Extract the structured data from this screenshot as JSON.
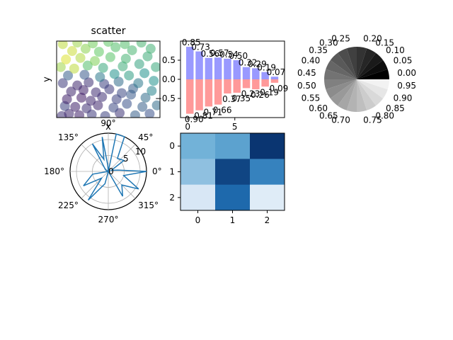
{
  "chart_data": [
    {
      "type": "scatter",
      "title": "scatter",
      "xlabel": "x",
      "ylabel": "y",
      "xlim": [
        0,
        1
      ],
      "ylim": [
        0,
        1
      ],
      "grid": false,
      "colormap": "viridis",
      "points": [
        [
          0.05,
          0.02,
          0.15
        ],
        [
          0.12,
          0.05,
          0.12
        ],
        [
          0.22,
          0.03,
          0.1
        ],
        [
          0.34,
          0.04,
          0.18
        ],
        [
          0.47,
          0.02,
          0.2
        ],
        [
          0.61,
          0.06,
          0.16
        ],
        [
          0.76,
          0.03,
          0.3
        ],
        [
          0.9,
          0.05,
          0.25
        ],
        [
          0.08,
          0.15,
          0.2
        ],
        [
          0.18,
          0.14,
          0.1
        ],
        [
          0.29,
          0.12,
          0.15
        ],
        [
          0.4,
          0.16,
          0.12
        ],
        [
          0.55,
          0.13,
          0.22
        ],
        [
          0.68,
          0.18,
          0.25
        ],
        [
          0.83,
          0.14,
          0.3
        ],
        [
          0.97,
          0.16,
          0.35
        ],
        [
          0.1,
          0.24,
          0.1
        ],
        [
          0.24,
          0.26,
          0.08
        ],
        [
          0.33,
          0.22,
          0.12
        ],
        [
          0.44,
          0.27,
          0.15
        ],
        [
          0.58,
          0.24,
          0.2
        ],
        [
          0.72,
          0.3,
          0.28
        ],
        [
          0.86,
          0.26,
          0.35
        ],
        [
          0.14,
          0.34,
          0.12
        ],
        [
          0.26,
          0.36,
          0.1
        ],
        [
          0.38,
          0.33,
          0.14
        ],
        [
          0.51,
          0.37,
          0.18
        ],
        [
          0.63,
          0.32,
          0.22
        ],
        [
          0.74,
          0.38,
          0.3
        ],
        [
          0.92,
          0.35,
          0.45
        ],
        [
          0.06,
          0.45,
          0.18
        ],
        [
          0.2,
          0.42,
          0.12
        ],
        [
          0.31,
          0.46,
          0.15
        ],
        [
          0.46,
          0.44,
          0.2
        ],
        [
          0.6,
          0.47,
          0.35
        ],
        [
          0.79,
          0.45,
          0.4
        ],
        [
          0.94,
          0.48,
          0.5
        ],
        [
          0.11,
          0.55,
          0.3
        ],
        [
          0.27,
          0.56,
          0.28
        ],
        [
          0.42,
          0.53,
          0.4
        ],
        [
          0.56,
          0.57,
          0.5
        ],
        [
          0.7,
          0.55,
          0.55
        ],
        [
          0.85,
          0.58,
          0.5
        ],
        [
          0.04,
          0.66,
          0.85
        ],
        [
          0.17,
          0.64,
          0.9
        ],
        [
          0.3,
          0.68,
          0.7
        ],
        [
          0.45,
          0.65,
          0.6
        ],
        [
          0.64,
          0.67,
          0.62
        ],
        [
          0.8,
          0.7,
          0.58
        ],
        [
          0.96,
          0.66,
          0.6
        ],
        [
          0.09,
          0.76,
          0.95
        ],
        [
          0.23,
          0.78,
          0.88
        ],
        [
          0.37,
          0.74,
          0.8
        ],
        [
          0.52,
          0.79,
          0.72
        ],
        [
          0.67,
          0.77,
          0.65
        ],
        [
          0.88,
          0.8,
          0.62
        ],
        [
          0.15,
          0.87,
          0.92
        ],
        [
          0.28,
          0.9,
          0.82
        ],
        [
          0.41,
          0.86,
          0.75
        ],
        [
          0.57,
          0.92,
          0.7
        ],
        [
          0.73,
          0.88,
          0.66
        ],
        [
          0.91,
          0.9,
          0.64
        ],
        [
          0.06,
          0.96,
          0.9
        ],
        [
          0.2,
          0.98,
          0.85
        ],
        [
          0.35,
          0.97,
          0.78
        ],
        [
          0.5,
          0.99,
          0.74
        ],
        [
          0.66,
          0.96,
          0.7
        ],
        [
          0.82,
          0.98,
          0.66
        ]
      ]
    },
    {
      "type": "bar",
      "categories": [
        "0",
        "1",
        "2",
        "3",
        "4",
        "5",
        "6",
        "7",
        "8",
        "9"
      ],
      "series": [
        {
          "values": [
            0.85,
            0.73,
            0.56,
            0.57,
            0.54,
            0.5,
            0.32,
            0.29,
            0.19,
            0.07
          ],
          "color": "#9999ff"
        },
        {
          "values": [
            -0.9,
            -0.81,
            -0.71,
            -0.66,
            -0.37,
            -0.35,
            -0.23,
            -0.26,
            -0.19,
            -0.09
          ],
          "color": "#ff9999"
        }
      ],
      "value_labels_top": [
        "0.85",
        "0.73",
        "0.56",
        "0.57",
        "0.54",
        "0.50",
        "0.32",
        "0.29",
        "0.19",
        "0.07"
      ],
      "value_labels_bottom": [
        "0.90",
        "0.81",
        "0.71",
        "0.66",
        "0.37",
        "0.35",
        "0.23",
        "0.26",
        "0.19",
        "0.09"
      ],
      "yticks": [
        "0.5",
        "0.0",
        "−0.5"
      ],
      "xticks_top": [
        "0",
        "5"
      ],
      "ylim": [
        -1.0,
        1.0
      ]
    },
    {
      "type": "pie",
      "labels": [
        "0.00",
        "0.05",
        "0.10",
        "0.15",
        "0.20",
        "0.25",
        "0.30",
        "0.35",
        "0.40",
        "0.45",
        "0.50",
        "0.55",
        "0.60",
        "0.65",
        "0.70",
        "0.75",
        "0.80",
        "0.85",
        "0.90",
        "0.95"
      ],
      "values": [
        1,
        1,
        1,
        1,
        1,
        1,
        1,
        1,
        1,
        1,
        1,
        1,
        1,
        1,
        1,
        1,
        1,
        1,
        1,
        1
      ],
      "colors": "grayscale, shade equal to label value"
    },
    {
      "type": "line",
      "projection": "polar",
      "angle_ticks": [
        "0°",
        "45°",
        "90°",
        "135°",
        "180°",
        "225°",
        "270°",
        "315°"
      ],
      "radius_ticks": [
        "0",
        "5",
        "10"
      ],
      "rlim": [
        0,
        12
      ],
      "color": "#1f77b4",
      "points": [
        [
          0,
          12.5
        ],
        [
          8,
          3
        ],
        [
          20,
          1
        ],
        [
          35,
          6
        ],
        [
          55,
          5
        ],
        [
          65,
          13
        ],
        [
          78,
          12
        ],
        [
          85,
          0
        ],
        [
          95,
          2
        ],
        [
          100,
          11
        ],
        [
          110,
          4
        ],
        [
          120,
          10
        ],
        [
          150,
          1
        ],
        [
          170,
          0
        ],
        [
          190,
          5
        ],
        [
          210,
          9
        ],
        [
          225,
          3
        ],
        [
          235,
          11
        ],
        [
          255,
          4
        ],
        [
          275,
          0
        ],
        [
          300,
          9
        ],
        [
          315,
          6
        ],
        [
          330,
          11
        ],
        [
          345,
          5
        ],
        [
          360,
          12.5
        ]
      ]
    },
    {
      "type": "heatmap",
      "colormap": "Blues",
      "xticks": [
        "0",
        "1",
        "2"
      ],
      "yticks": [
        "0",
        "1",
        "2"
      ],
      "values": [
        [
          0.48,
          0.55,
          0.98
        ],
        [
          0.4,
          0.92,
          0.68
        ],
        [
          0.16,
          0.78,
          0.12
        ]
      ]
    }
  ]
}
